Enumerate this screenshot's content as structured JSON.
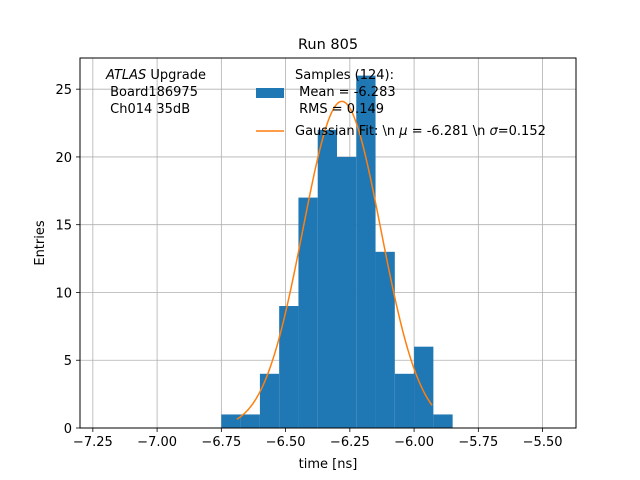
{
  "chart_data": {
    "type": "bar",
    "title": "Run 805",
    "xlabel": "time [ns]",
    "ylabel": "Entries",
    "xlim": [
      -7.3,
      -5.37
    ],
    "ylim": [
      0,
      27.3
    ],
    "grid": true,
    "xticks": [
      -7.25,
      -7.0,
      -6.75,
      -6.5,
      -6.25,
      -6.0,
      -5.75,
      -5.5
    ],
    "xtick_labels": [
      "−7.25",
      "−7.00",
      "−6.75",
      "−6.50",
      "−6.25",
      "−6.00",
      "−5.75",
      "−5.50"
    ],
    "yticks": [
      0,
      5,
      10,
      15,
      20,
      25
    ],
    "ytick_labels": [
      "0",
      "5",
      "10",
      "15",
      "20",
      "25"
    ],
    "bin_edges": [
      -6.75,
      -6.675,
      -6.6,
      -6.525,
      -6.45,
      -6.375,
      -6.3,
      -6.225,
      -6.15,
      -6.075,
      -6.0,
      -5.925,
      -5.85
    ],
    "bin_counts": [
      1,
      1,
      4,
      9,
      17,
      22,
      20,
      26,
      13,
      4,
      6,
      1
    ],
    "series": [
      {
        "name": "Samples (124):\n Mean = -6.283\n RMS = 0.149",
        "color": "#1f77b4"
      },
      {
        "name": "Gaussian Fit: \\n μ = -6.281 \\n σ=0.152",
        "color": "#ff7f0e",
        "mu": -6.281,
        "sigma": 0.152,
        "amplitude": 24.1,
        "x_range": [
          -6.69,
          -5.93
        ]
      }
    ],
    "annotation_lines": [
      "ATLAS Upgrade",
      " Board186975",
      " Ch014 35dB"
    ],
    "legend_location": "upper center"
  },
  "legend": {
    "samples_lines": [
      "Samples (124):",
      " Mean = -6.283",
      " RMS = 0.149"
    ],
    "fit_prefix": "Gaussian Fit: \\n ",
    "fit_mu_symbol": "μ",
    "fit_mid": " = -6.281 \\n ",
    "fit_sigma_symbol": "σ",
    "fit_suffix": "=0.152"
  },
  "annotation": {
    "atlas": "ATLAS",
    "upgrade": " Upgrade",
    "board": " Board186975",
    "channel": " Ch014 35dB"
  }
}
